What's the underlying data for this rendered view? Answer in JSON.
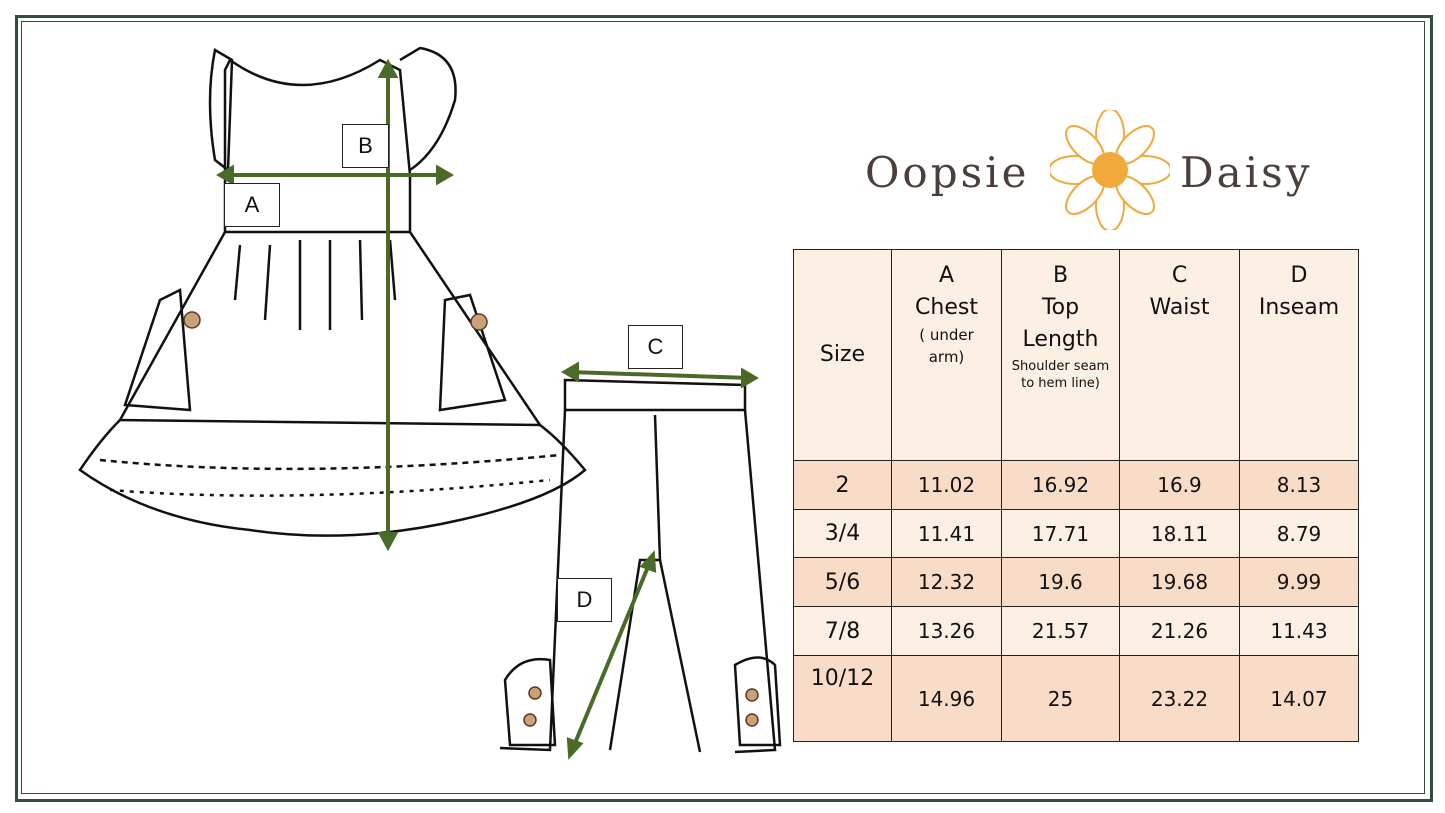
{
  "brand": {
    "name_left": "Oopsie",
    "name_right": "Daisy",
    "accent": "#f2a93b",
    "text_color": "#4a3f3a"
  },
  "diagram": {
    "labels": [
      "A",
      "B",
      "C",
      "D"
    ],
    "arrow_color": "#4a6a2a"
  },
  "table": {
    "headers": [
      {
        "letter": "",
        "title": "Size",
        "sub": "",
        "note": ""
      },
      {
        "letter": "A",
        "title": "Chest",
        "sub": "( under arm)",
        "note": ""
      },
      {
        "letter": "B",
        "title": "Top Length",
        "sub": "",
        "note": "Shoulder seam to hem line)"
      },
      {
        "letter": "C",
        "title": "Waist",
        "sub": "",
        "note": ""
      },
      {
        "letter": "D",
        "title": "Inseam",
        "sub": "",
        "note": ""
      }
    ],
    "rows": [
      [
        "2",
        "11.02",
        "16.92",
        "16.9",
        "8.13"
      ],
      [
        "3/4",
        "11.41",
        "17.71",
        "18.11",
        "8.79"
      ],
      [
        "5/6",
        "12.32",
        "19.6",
        "19.68",
        "9.99"
      ],
      [
        "7/8",
        "13.26",
        "21.57",
        "21.26",
        "11.43"
      ],
      [
        "10/12",
        "14.96",
        "25",
        "23.22",
        "14.07"
      ]
    ],
    "colors": {
      "header": "#fcefe4",
      "odd": "#f9dcc8",
      "even": "#fcefe4"
    }
  }
}
